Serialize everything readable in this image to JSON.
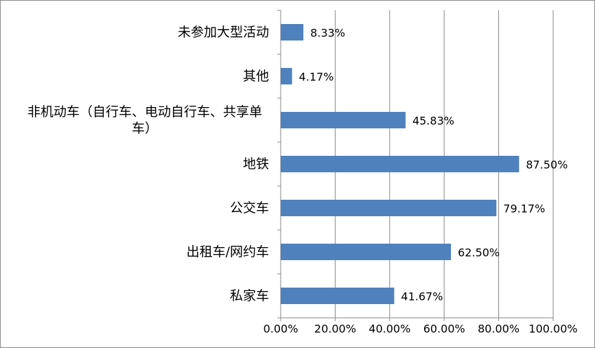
{
  "chart_data": {
    "type": "hbar",
    "categories": [
      "未参加大型活动",
      "其他",
      "非机动车（自行车、电动自行车、共享单车）",
      "地铁",
      "公交车",
      "出租车/网约车",
      "私家车"
    ],
    "values": [
      8.33,
      4.17,
      45.83,
      87.5,
      79.17,
      62.5,
      41.67
    ],
    "value_labels": [
      "8.33%",
      "4.17%",
      "45.83%",
      "87.50%",
      "79.17%",
      "62.50%",
      "41.67%"
    ],
    "color": "#4f81bd",
    "xlim": [
      0,
      100
    ],
    "xticks": [
      {
        "value": 0,
        "label": "0.00%"
      },
      {
        "value": 20,
        "label": "20.00%"
      },
      {
        "value": 40,
        "label": "40.00%"
      },
      {
        "value": 60,
        "label": "60.00%"
      },
      {
        "value": 80,
        "label": "80.00%"
      },
      {
        "value": 100,
        "label": "100.00%"
      }
    ],
    "grid": true
  }
}
